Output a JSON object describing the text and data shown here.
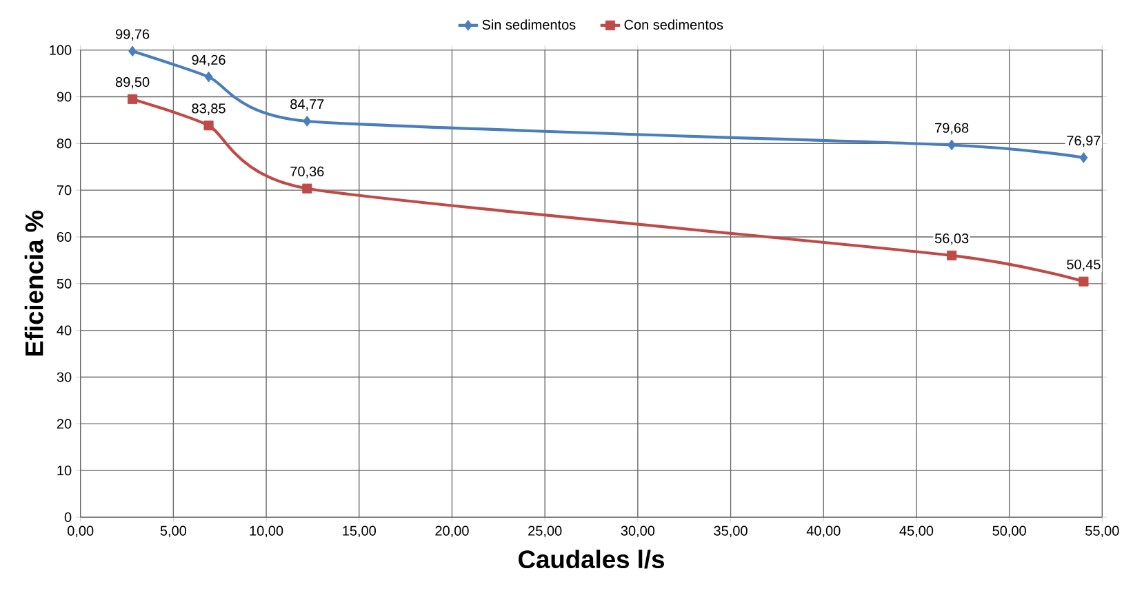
{
  "chart_data": {
    "type": "line",
    "xlabel": "Caudales l/s",
    "ylabel": "Eficiencia %",
    "series": [
      {
        "name": "Sin sedimentos",
        "color": "#4a7ebb",
        "marker": "diamond",
        "x": [
          2.8,
          6.9,
          12.2,
          46.9,
          54.0
        ],
        "values": [
          99.76,
          94.26,
          84.77,
          79.68,
          76.97
        ],
        "value_labels": [
          "99,76",
          "94,26",
          "84,77",
          "79,68",
          "76,97"
        ]
      },
      {
        "name": "Con sedimentos",
        "color": "#be4b48",
        "marker": "square",
        "x": [
          2.8,
          6.9,
          12.2,
          46.9,
          54.0
        ],
        "values": [
          89.5,
          83.85,
          70.36,
          56.03,
          50.45
        ],
        "value_labels": [
          "89,50",
          "83,85",
          "70,36",
          "56,03",
          "50,45"
        ]
      }
    ],
    "xlim": [
      0,
      55
    ],
    "ylim": [
      0,
      100
    ],
    "xticks": [
      {
        "value": 0,
        "label": "0,00"
      },
      {
        "value": 5,
        "label": "5,00"
      },
      {
        "value": 10,
        "label": "10,00"
      },
      {
        "value": 15,
        "label": "15,00"
      },
      {
        "value": 20,
        "label": "20,00"
      },
      {
        "value": 25,
        "label": "25,00"
      },
      {
        "value": 30,
        "label": "30,00"
      },
      {
        "value": 35,
        "label": "35,00"
      },
      {
        "value": 40,
        "label": "40,00"
      },
      {
        "value": 45,
        "label": "45,00"
      },
      {
        "value": 50,
        "label": "50,00"
      },
      {
        "value": 55,
        "label": "55,00"
      }
    ],
    "yticks": [
      0,
      10,
      20,
      30,
      40,
      50,
      60,
      70,
      80,
      90,
      100
    ],
    "grid": true,
    "legend": "top",
    "line_style": "solid"
  }
}
